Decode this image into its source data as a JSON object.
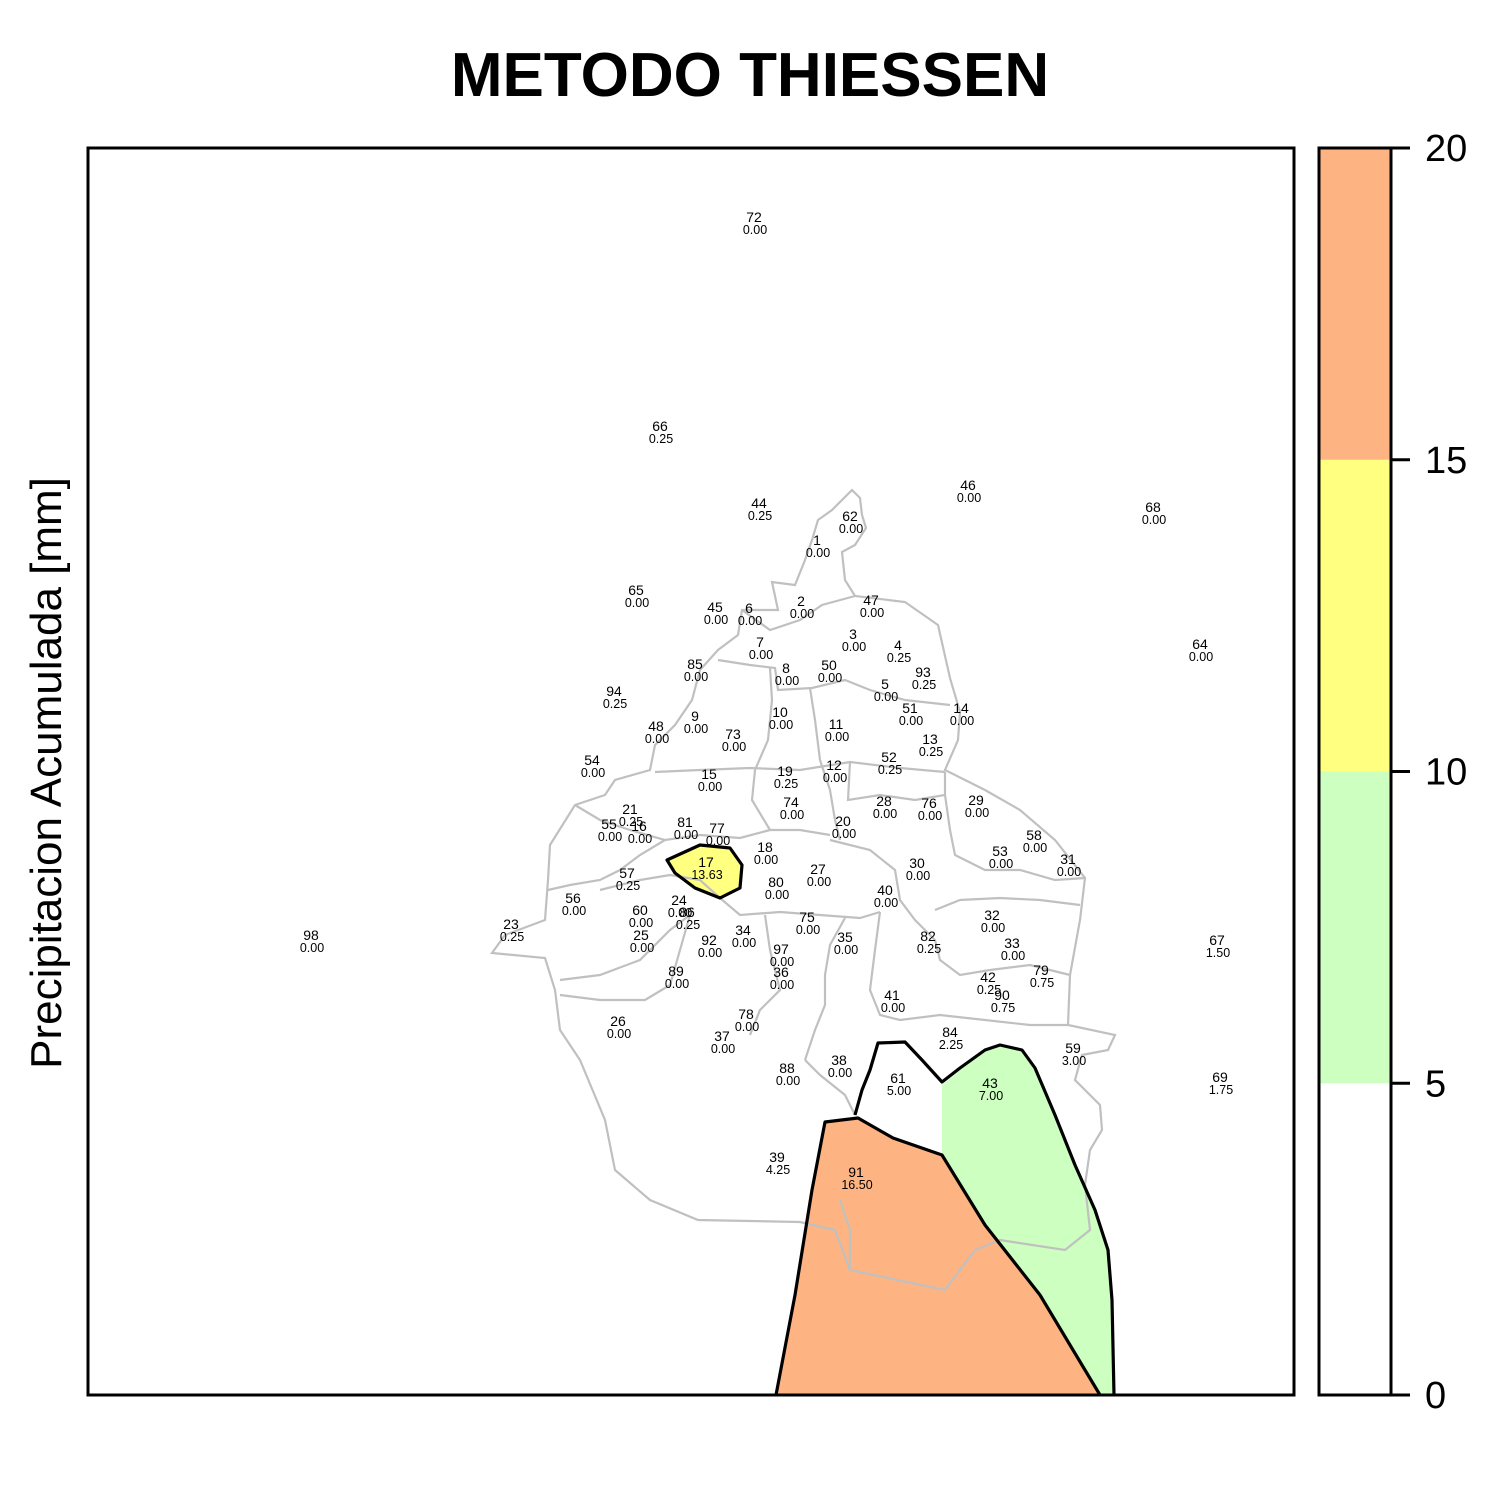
{
  "title": "METODO THIESSEN",
  "ylabel": "Precipitacion Acumulada [mm]",
  "legend": {
    "ticks": [
      "0",
      "5",
      "10",
      "15",
      "20"
    ],
    "bins": [
      {
        "from": 0,
        "to": 5,
        "color": "#ffffff"
      },
      {
        "from": 5,
        "to": 10,
        "color": "#ccffc0"
      },
      {
        "from": 10,
        "to": 15,
        "color": "#ffff80"
      },
      {
        "from": 15,
        "to": 20,
        "color": "#fdb482"
      }
    ]
  },
  "colors": {
    "boundary": "#c0c0c0",
    "contour": "#000000",
    "low": "#ccffc0",
    "mid": "#ffff80",
    "high": "#fdb482"
  },
  "stations": [
    {
      "id": "72",
      "value": "0.00"
    },
    {
      "id": "66",
      "value": "0.25"
    },
    {
      "id": "46",
      "value": "0.00"
    },
    {
      "id": "44",
      "value": "0.25"
    },
    {
      "id": "62",
      "value": "0.00"
    },
    {
      "id": "68",
      "value": "0.00"
    },
    {
      "id": "1",
      "value": "0.00"
    },
    {
      "id": "65",
      "value": "0.00"
    },
    {
      "id": "45",
      "value": "0.00"
    },
    {
      "id": "6",
      "value": "0.00"
    },
    {
      "id": "2",
      "value": "0.00"
    },
    {
      "id": "47",
      "value": "0.00"
    },
    {
      "id": "64",
      "value": "0.00"
    },
    {
      "id": "3",
      "value": "0.00"
    },
    {
      "id": "4",
      "value": "0.25"
    },
    {
      "id": "7",
      "value": "0.00"
    },
    {
      "id": "85",
      "value": "0.00"
    },
    {
      "id": "8",
      "value": "0.00"
    },
    {
      "id": "50",
      "value": "0.00"
    },
    {
      "id": "93",
      "value": "0.25"
    },
    {
      "id": "5",
      "value": "0.00"
    },
    {
      "id": "94",
      "value": "0.25"
    },
    {
      "id": "51",
      "value": "0.00"
    },
    {
      "id": "14",
      "value": "0.00"
    },
    {
      "id": "9",
      "value": "0.00"
    },
    {
      "id": "10",
      "value": "0.00"
    },
    {
      "id": "48",
      "value": "0.00"
    },
    {
      "id": "11",
      "value": "0.00"
    },
    {
      "id": "73",
      "value": "0.00"
    },
    {
      "id": "13",
      "value": "0.25"
    },
    {
      "id": "54",
      "value": "0.00"
    },
    {
      "id": "52",
      "value": "0.25"
    },
    {
      "id": "19",
      "value": "0.25"
    },
    {
      "id": "12",
      "value": "0.00"
    },
    {
      "id": "15",
      "value": "0.00"
    },
    {
      "id": "74",
      "value": "0.00"
    },
    {
      "id": "28",
      "value": "0.00"
    },
    {
      "id": "76",
      "value": "0.00"
    },
    {
      "id": "29",
      "value": "0.00"
    },
    {
      "id": "21",
      "value": "0.25"
    },
    {
      "id": "55",
      "value": "0.00"
    },
    {
      "id": "16",
      "value": "0.00"
    },
    {
      "id": "81",
      "value": "0.00"
    },
    {
      "id": "77",
      "value": "0.00"
    },
    {
      "id": "20",
      "value": "0.00"
    },
    {
      "id": "58",
      "value": "0.00"
    },
    {
      "id": "18",
      "value": "0.00"
    },
    {
      "id": "53",
      "value": "0.00"
    },
    {
      "id": "17",
      "value": "13.63"
    },
    {
      "id": "30",
      "value": "0.00"
    },
    {
      "id": "31",
      "value": "0.00"
    },
    {
      "id": "57",
      "value": "0.25"
    },
    {
      "id": "27",
      "value": "0.00"
    },
    {
      "id": "80",
      "value": "0.00"
    },
    {
      "id": "40",
      "value": "0.00"
    },
    {
      "id": "56",
      "value": "0.00"
    },
    {
      "id": "24",
      "value": "0.00"
    },
    {
      "id": "86",
      "value": "0.25"
    },
    {
      "id": "60",
      "value": "0.00"
    },
    {
      "id": "32",
      "value": "0.00"
    },
    {
      "id": "75",
      "value": "0.00"
    },
    {
      "id": "23",
      "value": "0.25"
    },
    {
      "id": "25",
      "value": "0.00"
    },
    {
      "id": "34",
      "value": "0.00"
    },
    {
      "id": "98",
      "value": "0.00"
    },
    {
      "id": "92",
      "value": "0.00"
    },
    {
      "id": "35",
      "value": "0.00"
    },
    {
      "id": "82",
      "value": "0.25"
    },
    {
      "id": "33",
      "value": "0.00"
    },
    {
      "id": "67",
      "value": "1.50"
    },
    {
      "id": "97",
      "value": "0.00"
    },
    {
      "id": "79",
      "value": "0.75"
    },
    {
      "id": "36",
      "value": "0.00"
    },
    {
      "id": "89",
      "value": "0.00"
    },
    {
      "id": "42",
      "value": "0.25"
    },
    {
      "id": "41",
      "value": "0.00"
    },
    {
      "id": "90",
      "value": "0.75"
    },
    {
      "id": "78",
      "value": "0.00"
    },
    {
      "id": "26",
      "value": "0.00"
    },
    {
      "id": "84",
      "value": "2.25"
    },
    {
      "id": "37",
      "value": "0.00"
    },
    {
      "id": "59",
      "value": "3.00"
    },
    {
      "id": "38",
      "value": "0.00"
    },
    {
      "id": "88",
      "value": "0.00"
    },
    {
      "id": "61",
      "value": "5.00"
    },
    {
      "id": "43",
      "value": "7.00"
    },
    {
      "id": "69",
      "value": "1.75"
    },
    {
      "id": "39",
      "value": "4.25"
    },
    {
      "id": "91",
      "value": "16.50"
    }
  ]
}
